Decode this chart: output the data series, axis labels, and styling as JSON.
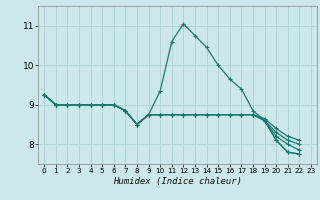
{
  "xlabel": "Humidex (Indice chaleur)",
  "xlim": [
    -0.5,
    23.5
  ],
  "ylim": [
    7.5,
    11.5
  ],
  "yticks": [
    8,
    9,
    10,
    11
  ],
  "xticks": [
    0,
    1,
    2,
    3,
    4,
    5,
    6,
    7,
    8,
    9,
    10,
    11,
    12,
    13,
    14,
    15,
    16,
    17,
    18,
    19,
    20,
    21,
    22,
    23
  ],
  "bg_color": "#cde8ea",
  "grid_color": "#b0d4d8",
  "line_color": "#1a7870",
  "spike_line": {
    "x": [
      0,
      1,
      2,
      3,
      4,
      5,
      6,
      7,
      8,
      9,
      10,
      11,
      12,
      13,
      14,
      15,
      16,
      17,
      18,
      19,
      20,
      21,
      22
    ],
    "y": [
      9.25,
      9.0,
      9.0,
      9.0,
      9.0,
      9.0,
      9.0,
      8.85,
      8.5,
      8.75,
      9.35,
      10.6,
      11.05,
      10.75,
      10.45,
      10.0,
      9.65,
      9.4,
      8.85,
      8.6,
      8.1,
      7.8,
      7.75
    ]
  },
  "flat_lines": [
    {
      "x": [
        0,
        1,
        2,
        3,
        4,
        5,
        6,
        7,
        8,
        9,
        10,
        11,
        12,
        13,
        14,
        15,
        16,
        17,
        18,
        19,
        20,
        21,
        22
      ],
      "y": [
        9.25,
        9.0,
        9.0,
        9.0,
        9.0,
        9.0,
        9.0,
        8.85,
        8.5,
        8.75,
        8.75,
        8.75,
        8.75,
        8.75,
        8.75,
        8.75,
        8.75,
        8.75,
        8.75,
        8.6,
        8.1,
        7.8,
        7.75
      ]
    },
    {
      "x": [
        0,
        1,
        2,
        3,
        4,
        5,
        6,
        7,
        8,
        9,
        10,
        11,
        12,
        13,
        14,
        15,
        16,
        17,
        18,
        19,
        20,
        21,
        22
      ],
      "y": [
        9.25,
        9.0,
        9.0,
        9.0,
        9.0,
        9.0,
        9.0,
        8.85,
        8.5,
        8.75,
        8.75,
        8.75,
        8.75,
        8.75,
        8.75,
        8.75,
        8.75,
        8.75,
        8.75,
        8.6,
        8.2,
        8.0,
        7.85
      ]
    },
    {
      "x": [
        0,
        1,
        2,
        3,
        4,
        5,
        6,
        7,
        8,
        9,
        10,
        11,
        12,
        13,
        14,
        15,
        16,
        17,
        18,
        19,
        20,
        21,
        22
      ],
      "y": [
        9.25,
        9.0,
        9.0,
        9.0,
        9.0,
        9.0,
        9.0,
        8.85,
        8.5,
        8.75,
        8.75,
        8.75,
        8.75,
        8.75,
        8.75,
        8.75,
        8.75,
        8.75,
        8.75,
        8.6,
        8.3,
        8.1,
        8.0
      ]
    },
    {
      "x": [
        0,
        1,
        2,
        3,
        4,
        5,
        6,
        7,
        8,
        9,
        10,
        11,
        12,
        13,
        14,
        15,
        16,
        17,
        18,
        19,
        20,
        21,
        22
      ],
      "y": [
        9.25,
        9.0,
        9.0,
        9.0,
        9.0,
        9.0,
        9.0,
        8.85,
        8.5,
        8.75,
        8.75,
        8.75,
        8.75,
        8.75,
        8.75,
        8.75,
        8.75,
        8.75,
        8.75,
        8.65,
        8.4,
        8.2,
        8.1
      ]
    }
  ]
}
